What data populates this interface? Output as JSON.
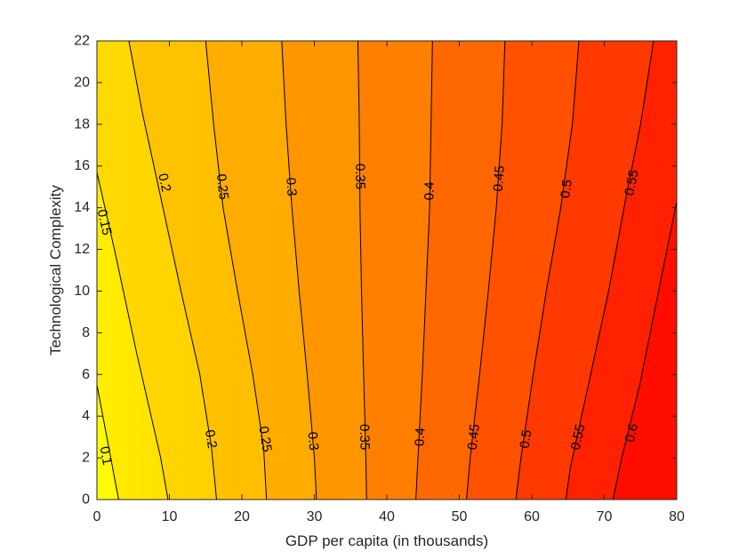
{
  "chart_data": {
    "type": "contour",
    "title": "",
    "xlabel": "GDP per capita (in thousands)",
    "ylabel": "Technological Complexity",
    "xlim": [
      0,
      80
    ],
    "ylim": [
      0,
      22
    ],
    "xticks": [
      0,
      10,
      20,
      30,
      40,
      50,
      60,
      70,
      80
    ],
    "yticks": [
      0,
      2,
      4,
      6,
      8,
      10,
      12,
      14,
      16,
      18,
      20,
      22
    ],
    "xtick_labels": [
      "0",
      "10",
      "20",
      "30",
      "40",
      "50",
      "60",
      "70",
      "80"
    ],
    "ytick_labels": [
      "0",
      "2",
      "4",
      "6",
      "8",
      "10",
      "12",
      "14",
      "16",
      "18",
      "20",
      "22"
    ],
    "colormap": {
      "low": "#FFFF00",
      "high": "#FF0000",
      "name": "autumn (reversed)"
    },
    "color_range": [
      0.08,
      0.66
    ],
    "grid": false,
    "contours": [
      {
        "level": 0.1,
        "label": "0.1",
        "points": [
          [
            0,
            5.5
          ],
          [
            3.0,
            0
          ]
        ],
        "label_positions": [
          [
            1.2,
            2.1
          ]
        ]
      },
      {
        "level": 0.15,
        "label": "0.15",
        "points": [
          [
            0,
            15.7
          ],
          [
            2.4,
            12
          ],
          [
            5.5,
            7
          ],
          [
            8.8,
            2
          ],
          [
            9.8,
            0
          ]
        ],
        "label_positions": [
          [
            1.0,
            13.3
          ]
        ]
      },
      {
        "level": 0.2,
        "label": "0.2",
        "points": [
          [
            4.4,
            22
          ],
          [
            6.3,
            18.5
          ],
          [
            8.8,
            14.5
          ],
          [
            11.6,
            10
          ],
          [
            14.2,
            6
          ],
          [
            15.8,
            2.5
          ],
          [
            16.5,
            0
          ]
        ],
        "label_positions": [
          [
            9.3,
            15.2
          ],
          [
            15.7,
            2.9
          ]
        ]
      },
      {
        "level": 0.25,
        "label": "0.25",
        "points": [
          [
            15.0,
            22
          ],
          [
            16.1,
            18
          ],
          [
            17.4,
            14
          ],
          [
            19.4,
            10
          ],
          [
            21.5,
            6
          ],
          [
            23.0,
            2.5
          ],
          [
            23.4,
            0
          ]
        ],
        "label_positions": [
          [
            17.3,
            15.0
          ],
          [
            23.2,
            2.9
          ]
        ]
      },
      {
        "level": 0.3,
        "label": "0.3",
        "points": [
          [
            25.5,
            22
          ],
          [
            26.1,
            18
          ],
          [
            26.9,
            14
          ],
          [
            27.9,
            10
          ],
          [
            29.0,
            6
          ],
          [
            30.0,
            2
          ],
          [
            30.3,
            0
          ]
        ],
        "label_positions": [
          [
            26.8,
            15.0
          ],
          [
            29.8,
            2.8
          ]
        ]
      },
      {
        "level": 0.35,
        "label": "0.35",
        "points": [
          [
            36.0,
            22
          ],
          [
            36.2,
            18
          ],
          [
            36.3,
            14
          ],
          [
            36.5,
            10
          ],
          [
            36.8,
            6
          ],
          [
            37.1,
            2
          ],
          [
            37.2,
            0
          ]
        ],
        "label_positions": [
          [
            36.3,
            15.5
          ],
          [
            36.9,
            3.0
          ]
        ]
      },
      {
        "level": 0.4,
        "label": "0.4",
        "points": [
          [
            46.3,
            22
          ],
          [
            46.1,
            18
          ],
          [
            45.9,
            14
          ],
          [
            45.4,
            10
          ],
          [
            44.9,
            6
          ],
          [
            44.3,
            2
          ],
          [
            44.0,
            0
          ]
        ],
        "label_positions": [
          [
            45.9,
            14.8
          ],
          [
            44.6,
            3.0
          ]
        ]
      },
      {
        "level": 0.45,
        "label": "0.45",
        "points": [
          [
            56.3,
            22
          ],
          [
            55.9,
            18
          ],
          [
            55.1,
            14
          ],
          [
            54.0,
            10
          ],
          [
            52.8,
            6
          ],
          [
            51.5,
            2
          ],
          [
            51.0,
            0
          ]
        ],
        "label_positions": [
          [
            55.5,
            15.4
          ],
          [
            52.0,
            3.0
          ]
        ]
      },
      {
        "level": 0.5,
        "label": "0.5",
        "points": [
          [
            66.5,
            22
          ],
          [
            65.6,
            18
          ],
          [
            64.0,
            14
          ],
          [
            62.0,
            10
          ],
          [
            60.2,
            6
          ],
          [
            58.5,
            2
          ],
          [
            57.8,
            0
          ]
        ],
        "label_positions": [
          [
            64.8,
            14.9
          ],
          [
            59.2,
            2.9
          ]
        ]
      },
      {
        "level": 0.55,
        "label": "0.55",
        "points": [
          [
            76.8,
            22
          ],
          [
            75.0,
            18
          ],
          [
            73.0,
            14.5
          ],
          [
            70.6,
            10
          ],
          [
            67.8,
            5.5
          ],
          [
            65.3,
            1.5
          ],
          [
            64.7,
            0
          ]
        ],
        "label_positions": [
          [
            73.8,
            15.2
          ],
          [
            66.4,
            3.0
          ]
        ]
      },
      {
        "level": 0.6,
        "label": "0.6",
        "points": [
          [
            80,
            14.3
          ],
          [
            77.5,
            10
          ],
          [
            74.9,
            5.5
          ],
          [
            72.4,
            2
          ],
          [
            71.2,
            0
          ]
        ],
        "label_positions": [
          [
            73.8,
            3.2
          ]
        ]
      }
    ]
  }
}
